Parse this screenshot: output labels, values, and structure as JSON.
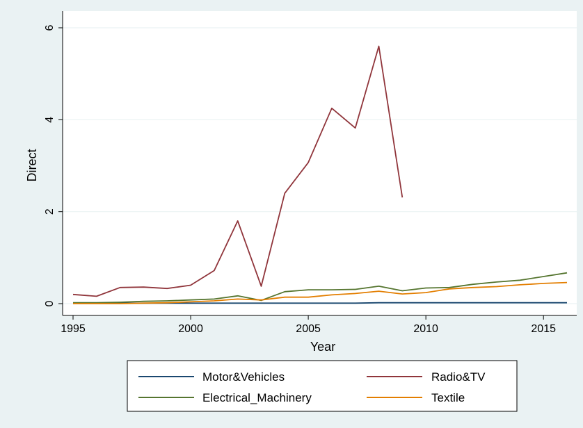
{
  "chart_data": {
    "type": "line",
    "xlabel": "Year",
    "ylabel": "Direct",
    "xlim": [
      1995,
      2016
    ],
    "ylim": [
      0,
      6
    ],
    "xticks": [
      1995,
      2000,
      2005,
      2010,
      2015
    ],
    "yticks": [
      0,
      2,
      4,
      6
    ],
    "grid": "horizontal",
    "legend_position": "bottom",
    "x": [
      1995,
      1996,
      1997,
      1998,
      1999,
      2000,
      2001,
      2002,
      2003,
      2004,
      2005,
      2006,
      2007,
      2008,
      2009,
      2010,
      2011,
      2012,
      2013,
      2014,
      2015,
      2016
    ],
    "series": [
      {
        "name": "Motor&Vehicles",
        "color": "#1a476f",
        "values": [
          0.01,
          0.01,
          0.01,
          0.01,
          0.01,
          0.01,
          0.01,
          0.01,
          0.01,
          0.01,
          0.01,
          0.01,
          0.01,
          0.02,
          0.02,
          0.02,
          0.02,
          0.02,
          0.02,
          0.02,
          0.02,
          0.02
        ]
      },
      {
        "name": "Radio&TV",
        "color": "#90353b",
        "values": [
          0.2,
          0.16,
          0.35,
          0.36,
          0.33,
          0.4,
          0.72,
          1.8,
          0.38,
          2.4,
          3.07,
          4.25,
          3.82,
          5.6,
          2.31,
          null,
          null,
          null,
          null,
          null,
          null,
          null
        ]
      },
      {
        "name": "Electrical_Machinery",
        "color": "#55752f",
        "values": [
          0.02,
          0.02,
          0.03,
          0.05,
          0.06,
          0.08,
          0.1,
          0.17,
          0.07,
          0.26,
          0.3,
          0.3,
          0.31,
          0.38,
          0.28,
          0.34,
          0.35,
          0.42,
          0.47,
          0.51,
          0.59,
          0.67
        ]
      },
      {
        "name": "Textile",
        "color": "#e37e00",
        "values": [
          0.0,
          0.0,
          0.0,
          0.01,
          0.02,
          0.04,
          0.06,
          0.1,
          0.08,
          0.14,
          0.14,
          0.19,
          0.22,
          0.27,
          0.21,
          0.24,
          0.32,
          0.35,
          0.37,
          0.41,
          0.44,
          0.46
        ]
      }
    ]
  }
}
